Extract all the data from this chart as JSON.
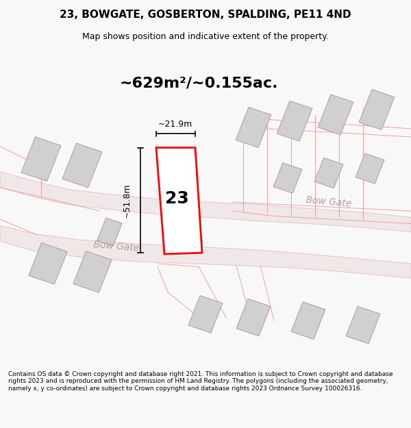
{
  "title_line1": "23, BOWGATE, GOSBERTON, SPALDING, PE11 4ND",
  "title_line2": "Map shows position and indicative extent of the property.",
  "area_text": "~629m²/~0.155ac.",
  "label_23": "23",
  "dim_vertical": "~51.8m",
  "dim_horizontal": "~21.9m",
  "road_label_1": "Bow Gate",
  "road_label_2": "Bow Gate",
  "footer_text": "Contains OS data © Crown copyright and database right 2021. This information is subject to Crown copyright and database rights 2023 and is reproduced with the permission of HM Land Registry. The polygons (including the associated geometry, namely x, y co-ordinates) are subject to Crown copyright and database rights 2023 Ordnance Survey 100026316.",
  "bg_color": "#f8f8f8",
  "map_bg": "#ffffff",
  "road_fill": "#e8e8e8",
  "road_stroke": "#e0c8c8",
  "building_fill": "#d0d0d0",
  "building_stroke": "#c0a0a0",
  "highlight_stroke": "#ff0000",
  "highlight_fill": "#ffffff",
  "dim_color": "#000000",
  "road_text_color": "#b0a0a0",
  "title_color": "#000000",
  "footer_color": "#000000"
}
